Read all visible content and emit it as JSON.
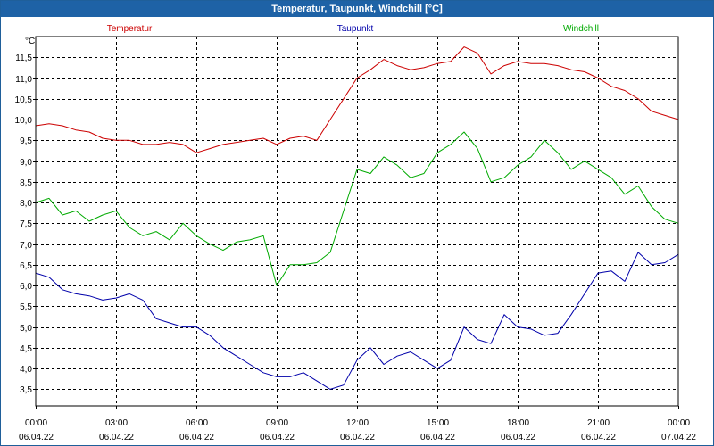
{
  "window": {
    "title": "Temperatur, Taupunkt, Windchill [°C]"
  },
  "chart_data": {
    "type": "line",
    "title": "Temperatur, Taupunkt, Windchill [°C]",
    "ylabel": "°C",
    "ylim": [
      3.1,
      12.0
    ],
    "yticks": [
      3.5,
      4.0,
      4.5,
      5.0,
      5.5,
      6.0,
      6.5,
      7.0,
      7.5,
      8.0,
      8.5,
      9.0,
      9.5,
      10.0,
      10.5,
      11.0,
      11.5
    ],
    "ytick_labels": [
      "3,5",
      "4,0",
      "4,5",
      "5,0",
      "5,5",
      "6,0",
      "6,5",
      "7,0",
      "7,5",
      "8,0",
      "8,5",
      "9,0",
      "9,5",
      "10,0",
      "10,5",
      "11,0",
      "11,5"
    ],
    "xlim": [
      0,
      24
    ],
    "xticks": [
      {
        "hour": 0,
        "time": "00:00",
        "date": "06.04.22"
      },
      {
        "hour": 3,
        "time": "03:00",
        "date": "06.04.22"
      },
      {
        "hour": 6,
        "time": "06:00",
        "date": "06.04.22"
      },
      {
        "hour": 9,
        "time": "09:00",
        "date": "06.04.22"
      },
      {
        "hour": 12,
        "time": "12:00",
        "date": "06.04.22"
      },
      {
        "hour": 15,
        "time": "15:00",
        "date": "06.04.22"
      },
      {
        "hour": 18,
        "time": "18:00",
        "date": "06.04.22"
      },
      {
        "hour": 21,
        "time": "21:00",
        "date": "06.04.22"
      },
      {
        "hour": 24,
        "time": "00:00",
        "date": "07.04.22"
      }
    ],
    "grid": true,
    "series": [
      {
        "name": "Temperatur",
        "color": "#cc0000",
        "x": [
          0,
          0.5,
          1,
          1.5,
          2,
          2.5,
          3,
          3.5,
          4,
          4.5,
          5,
          5.5,
          6,
          6.5,
          7,
          7.5,
          8,
          8.5,
          9,
          9.5,
          10,
          10.5,
          11,
          11.5,
          12,
          12.5,
          13,
          13.5,
          14,
          14.5,
          15,
          15.5,
          16,
          16.5,
          17,
          17.5,
          18,
          18.5,
          19,
          19.5,
          20,
          20.5,
          21,
          21.5,
          22,
          22.5,
          23,
          23.5,
          24
        ],
        "values": [
          9.85,
          9.9,
          9.85,
          9.75,
          9.7,
          9.55,
          9.5,
          9.5,
          9.4,
          9.4,
          9.45,
          9.4,
          9.2,
          9.3,
          9.4,
          9.45,
          9.5,
          9.55,
          9.4,
          9.55,
          9.6,
          9.5,
          10.0,
          10.5,
          11.0,
          11.2,
          11.45,
          11.3,
          11.2,
          11.25,
          11.35,
          11.4,
          11.75,
          11.6,
          11.1,
          11.3,
          11.4,
          11.35,
          11.35,
          11.3,
          11.2,
          11.15,
          11.0,
          10.8,
          10.7,
          10.5,
          10.2,
          10.1,
          10.0
        ]
      },
      {
        "name": "Taupunkt",
        "color": "#0000aa",
        "x": [
          0,
          0.5,
          1,
          1.5,
          2,
          2.5,
          3,
          3.5,
          4,
          4.5,
          5,
          5.5,
          6,
          6.5,
          7,
          7.5,
          8,
          8.5,
          9,
          9.5,
          10,
          10.5,
          11,
          11.5,
          12,
          12.5,
          13,
          13.5,
          14,
          14.5,
          15,
          15.5,
          16,
          16.5,
          17,
          17.5,
          18,
          18.5,
          19,
          19.5,
          20,
          20.5,
          21,
          21.5,
          22,
          22.5,
          23,
          23.5,
          24
        ],
        "values": [
          6.3,
          6.2,
          5.9,
          5.8,
          5.75,
          5.65,
          5.7,
          5.8,
          5.65,
          5.2,
          5.1,
          5.0,
          5.0,
          4.8,
          4.5,
          4.3,
          4.1,
          3.9,
          3.8,
          3.8,
          3.9,
          3.7,
          3.5,
          3.6,
          4.2,
          4.5,
          4.1,
          4.3,
          4.4,
          4.2,
          4.0,
          4.2,
          5.0,
          4.7,
          4.6,
          5.3,
          5.0,
          4.95,
          4.8,
          4.85,
          5.3,
          5.8,
          6.3,
          6.35,
          6.1,
          6.8,
          6.5,
          6.55,
          6.75
        ]
      },
      {
        "name": "Windchill",
        "color": "#00aa00",
        "x": [
          0,
          0.5,
          1,
          1.5,
          2,
          2.5,
          3,
          3.5,
          4,
          4.5,
          5,
          5.5,
          6,
          6.5,
          7,
          7.5,
          8,
          8.5,
          9,
          9.5,
          10,
          10.5,
          11,
          11.5,
          12,
          12.5,
          13,
          13.5,
          14,
          14.5,
          15,
          15.5,
          16,
          16.5,
          17,
          17.5,
          18,
          18.5,
          19,
          19.5,
          20,
          20.5,
          21,
          21.5,
          22,
          22.5,
          23,
          23.5,
          24
        ],
        "values": [
          8.0,
          8.1,
          7.7,
          7.8,
          7.55,
          7.7,
          7.8,
          7.4,
          7.2,
          7.3,
          7.1,
          7.5,
          7.2,
          7.0,
          6.85,
          7.05,
          7.1,
          7.2,
          6.0,
          6.5,
          6.5,
          6.55,
          6.8,
          7.8,
          8.8,
          8.7,
          9.1,
          8.9,
          8.6,
          8.7,
          9.2,
          9.4,
          9.7,
          9.3,
          8.5,
          8.6,
          8.9,
          9.1,
          9.5,
          9.2,
          8.8,
          9.0,
          8.8,
          8.6,
          8.2,
          8.4,
          7.9,
          7.6,
          7.5
        ]
      }
    ]
  }
}
